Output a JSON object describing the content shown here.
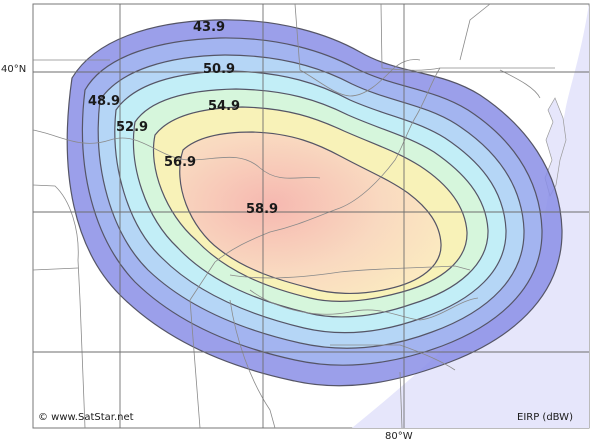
{
  "map": {
    "lat_label": "40°N",
    "lon_label": "80°W",
    "credit": "© www.SatStar.net",
    "unit_label": "EIRP (dBW)",
    "colors": {
      "ocean": "#e6e6fb",
      "land": "#ffffff",
      "border": "#9a9a9a",
      "contour_line": "#555566"
    },
    "contours": [
      {
        "value": "43.9",
        "fill": "#8a8ee6"
      },
      {
        "value": "48.9",
        "fill": "#a3b4f0"
      },
      {
        "value": "50.9",
        "fill": "#b5d6f6"
      },
      {
        "value": "52.9",
        "fill": "#c2eef7"
      },
      {
        "value": "54.9",
        "fill": "#d6f6dc"
      },
      {
        "value": "56.9",
        "fill": "#f8f2b8"
      },
      {
        "value": "58.9",
        "fill": "#f8cfc0"
      }
    ]
  }
}
